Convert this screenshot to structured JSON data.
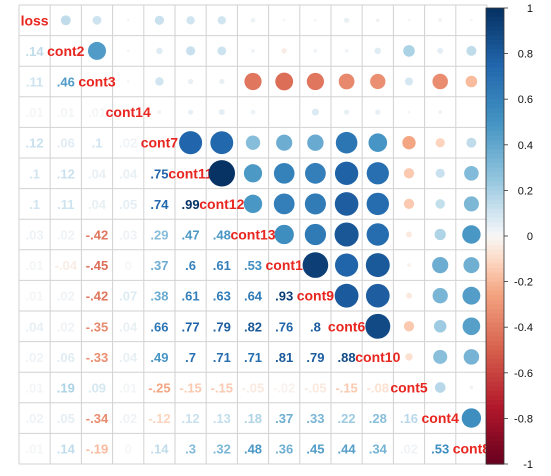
{
  "chart_data": {
    "type": "heatmap",
    "variables": [
      "loss",
      "cont2",
      "cont3",
      "cont14",
      "cont7",
      "cont11",
      "cont12",
      "cont13",
      "cont1",
      "cont9",
      "cont6",
      "cont10",
      "cont5",
      "cont4",
      "cont8"
    ],
    "lower_triangle_values": [
      [],
      [
        0.14
      ],
      [
        0.11,
        0.46
      ],
      [
        0.01,
        0.01,
        0.01
      ],
      [
        0.12,
        0.06,
        0.1,
        0.02
      ],
      [
        0.1,
        0.12,
        0.04,
        0.04,
        0.75
      ],
      [
        0.1,
        0.11,
        0.04,
        0.05,
        0.74,
        0.99
      ],
      [
        0.03,
        0.02,
        -0.42,
        0.03,
        0.29,
        0.47,
        0.48
      ],
      [
        0.01,
        -0.04,
        -0.45,
        0.0,
        0.37,
        0.6,
        0.61,
        0.53
      ],
      [
        0.01,
        0.02,
        -0.42,
        0.07,
        0.38,
        0.61,
        0.63,
        0.64,
        0.93
      ],
      [
        0.04,
        0.02,
        -0.35,
        0.04,
        0.66,
        0.77,
        0.79,
        0.82,
        0.76,
        0.8
      ],
      [
        0.02,
        0.06,
        -0.33,
        0.04,
        0.49,
        0.7,
        0.71,
        0.71,
        0.81,
        0.79,
        0.88
      ],
      [
        0.01,
        0.19,
        0.09,
        0.01,
        -0.25,
        -0.15,
        -0.15,
        -0.05,
        -0.02,
        -0.05,
        -0.15,
        -0.08
      ],
      [
        0.02,
        0.05,
        -0.34,
        0.02,
        -0.12,
        0.12,
        0.13,
        0.18,
        0.37,
        0.33,
        0.22,
        0.28,
        0.16
      ],
      [
        0.01,
        0.14,
        -0.19,
        0.0,
        0.14,
        0.3,
        0.32,
        0.48,
        0.36,
        0.45,
        0.44,
        0.34,
        0.02,
        0.53
      ]
    ],
    "lower_display": "number",
    "upper_display": "circle",
    "diagonal_display": "variable-name",
    "color_scale": {
      "range": [
        -1,
        1
      ],
      "ticks": [
        "1",
        "0.8",
        "0.6",
        "0.4",
        "0.2",
        "0",
        "-0.2",
        "-0.4",
        "-0.6",
        "-0.8",
        "-1"
      ],
      "colors": {
        "negative": "#67001f",
        "mid_negative": "#f4a582",
        "zero": "#f7f7f7",
        "mid_positive": "#92c5de",
        "positive": "#053061"
      }
    },
    "label_color": "#e8251f",
    "grid": true,
    "legend": "colorbar-right"
  }
}
